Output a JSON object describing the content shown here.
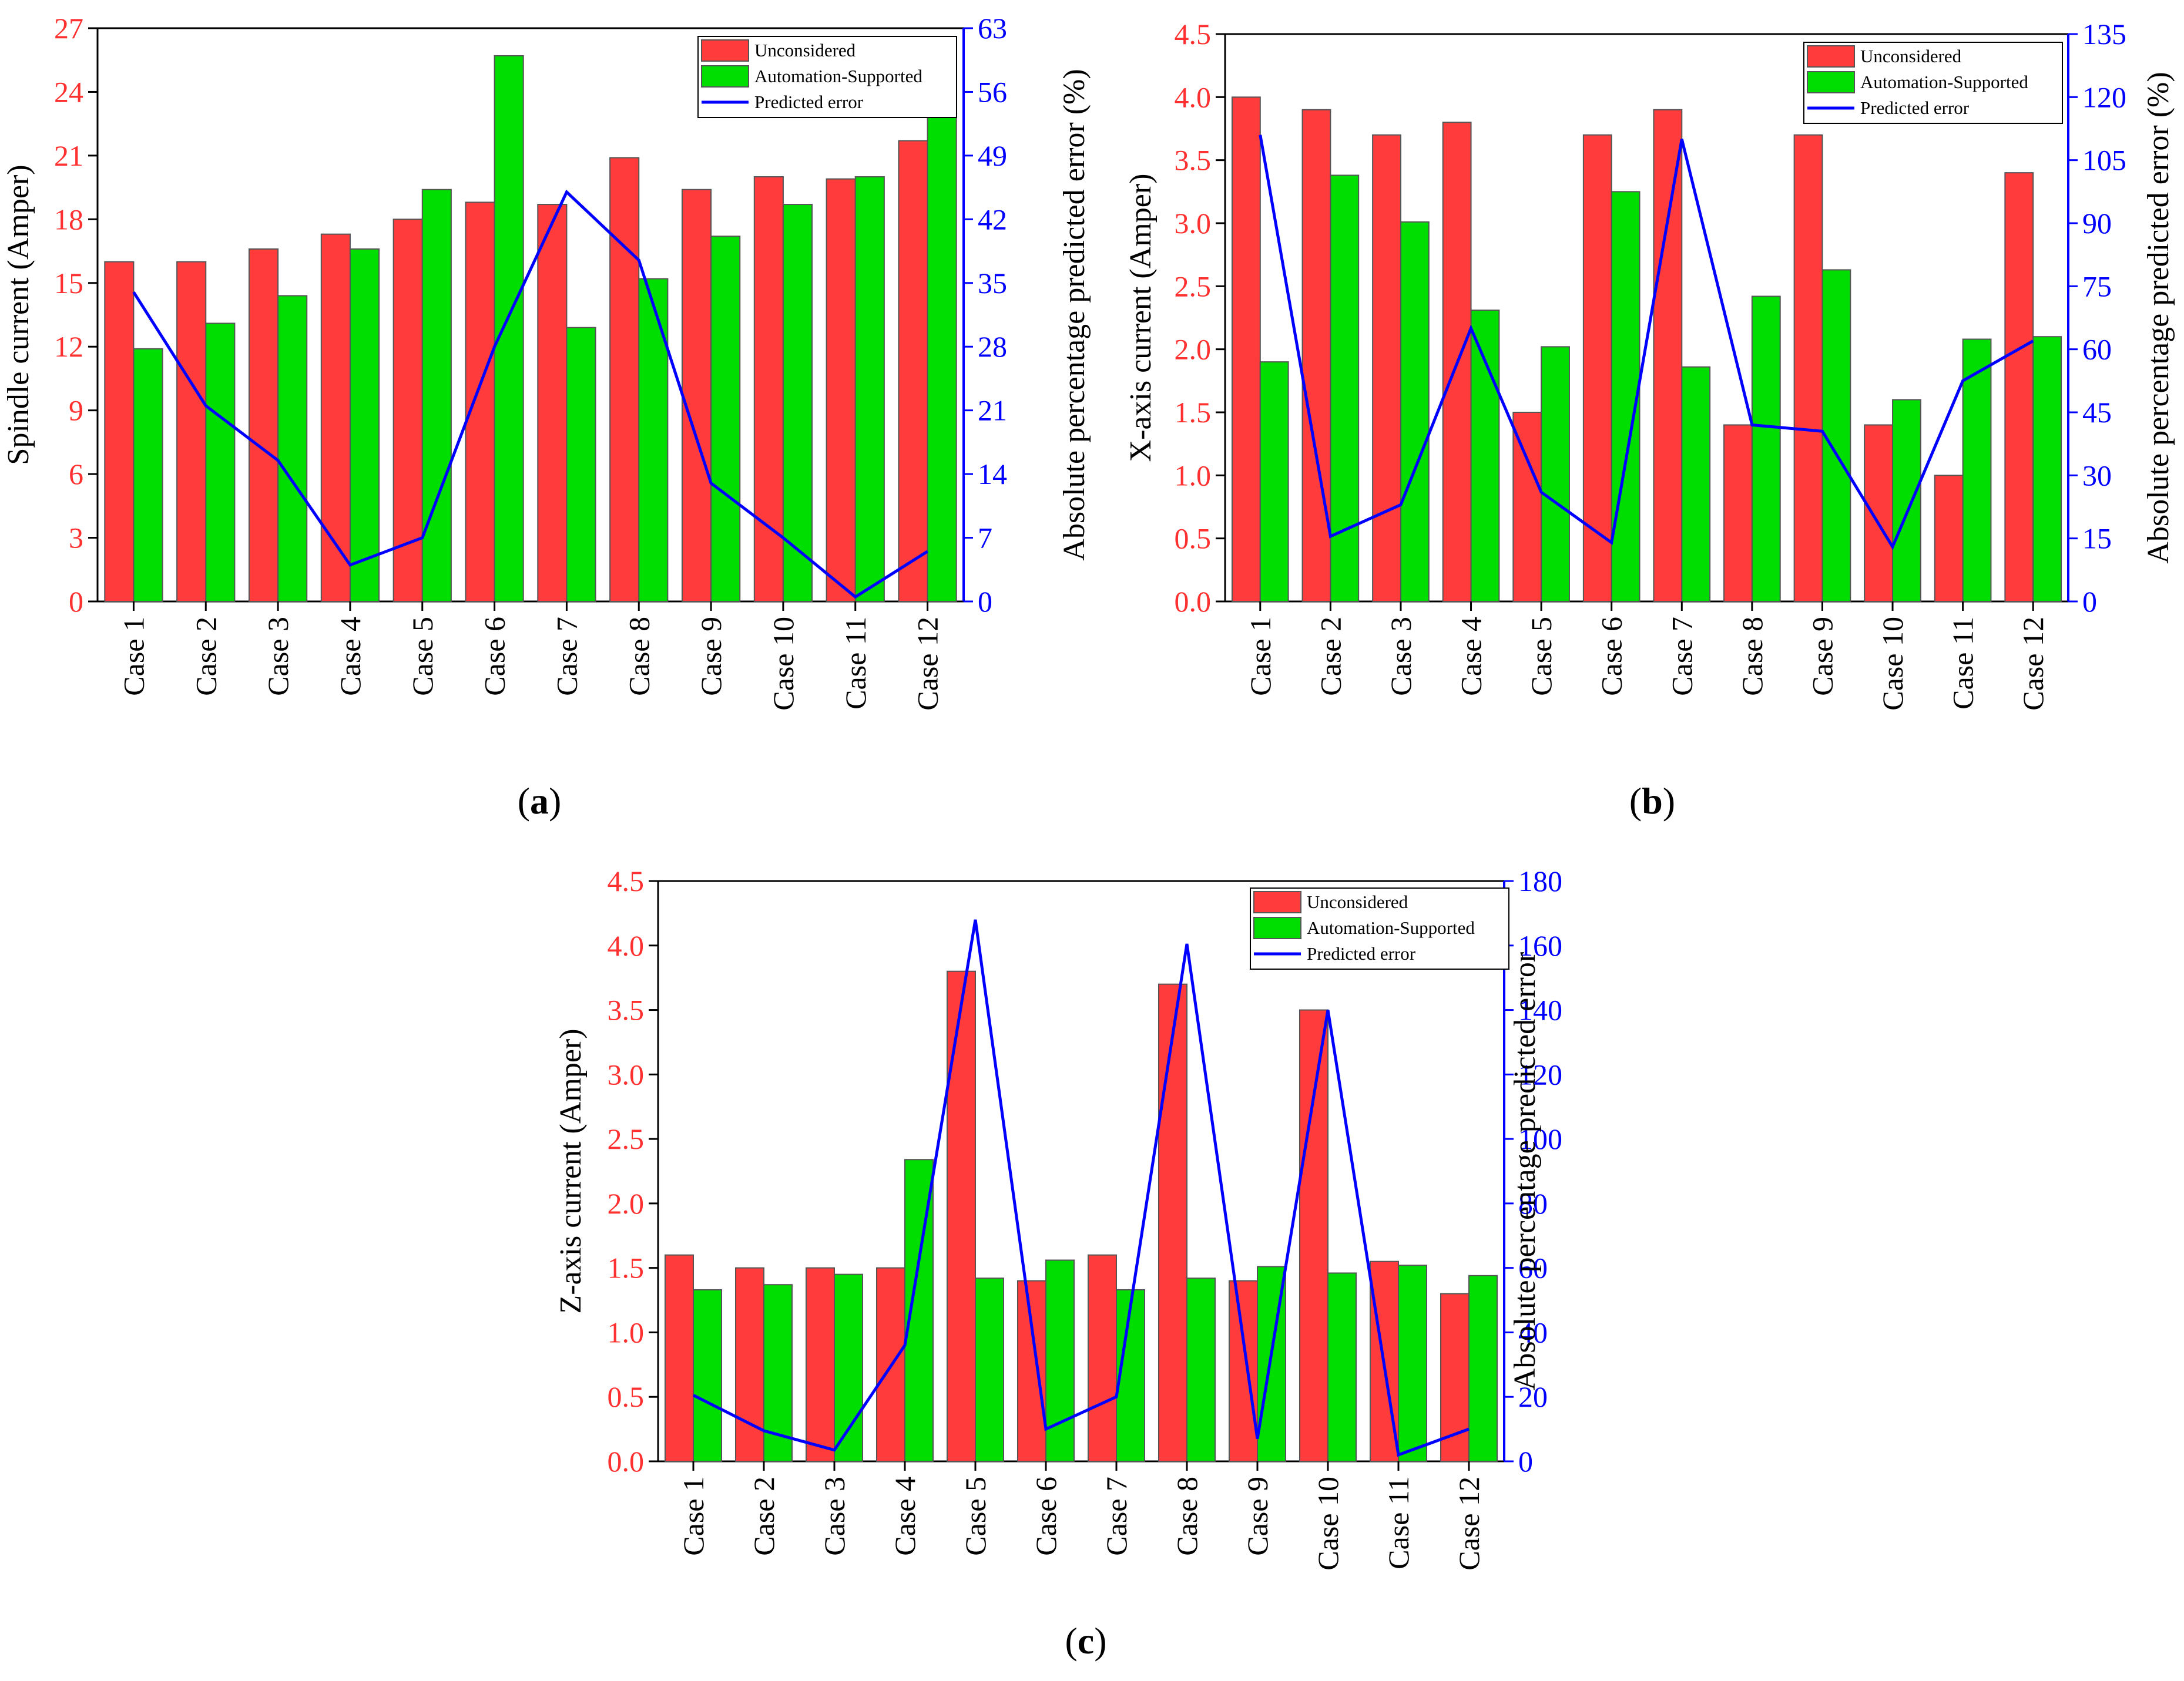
{
  "colors": {
    "unconsidered": "#FF3B3B",
    "automation": "#00DD00",
    "error_line": "#0000FF",
    "left_axis": "#FF3030",
    "right_axis": "#0000FF",
    "bar_edge": "#555555"
  },
  "chart_data": [
    {
      "type": "bar",
      "panel": "a",
      "panel_label": "(a)",
      "panel_letter": "a",
      "categories": [
        "Case 1",
        "Case 2",
        "Case 3",
        "Case 4",
        "Case 5",
        "Case 6",
        "Case 7",
        "Case 8",
        "Case 9",
        "Case 10",
        "Case 11",
        "Case 12"
      ],
      "series": [
        {
          "name": "Unconsidered",
          "kind": "bar",
          "values": [
            16.0,
            16.0,
            16.6,
            17.3,
            18.0,
            18.8,
            18.7,
            20.9,
            19.4,
            20.0,
            19.9,
            21.7
          ]
        },
        {
          "name": "Automation-Supported",
          "kind": "bar",
          "values": [
            11.9,
            13.1,
            14.4,
            16.6,
            19.4,
            25.7,
            12.9,
            15.2,
            17.2,
            18.7,
            20.0,
            23.0
          ]
        },
        {
          "name": "Predicted error",
          "kind": "line",
          "axis": "right",
          "values": [
            34.0,
            21.5,
            15.5,
            4.0,
            7.0,
            28.0,
            45.0,
            37.5,
            13.0,
            7.0,
            0.5,
            5.5
          ]
        }
      ],
      "ylabel": "Spindle current (Amper)",
      "ylim": [
        0,
        27
      ],
      "yticks": [
        "0",
        "3",
        "6",
        "9",
        "12",
        "15",
        "18",
        "21",
        "24",
        "27"
      ],
      "y2label": "Absolute percentage predicted error (%)",
      "y2lim": [
        0,
        63
      ],
      "y2ticks": [
        "0",
        "7",
        "14",
        "21",
        "28",
        "35",
        "42",
        "49",
        "56",
        "63"
      ],
      "legend": [
        "Unconsidered",
        "Automation-Supported",
        "Predicted error"
      ],
      "legend_position": "top-right"
    },
    {
      "type": "bar",
      "panel": "b",
      "panel_label": "(b)",
      "panel_letter": "b",
      "categories": [
        "Case 1",
        "Case 2",
        "Case 3",
        "Case 4",
        "Case 5",
        "Case 6",
        "Case 7",
        "Case 8",
        "Case 9",
        "Case 10",
        "Case 11",
        "Case 12"
      ],
      "series": [
        {
          "name": "Unconsidered",
          "kind": "bar",
          "values": [
            4.0,
            3.9,
            3.7,
            3.8,
            1.5,
            3.7,
            3.9,
            1.4,
            3.7,
            1.4,
            1.0,
            3.4
          ]
        },
        {
          "name": "Automation-Supported",
          "kind": "bar",
          "values": [
            1.9,
            3.38,
            3.01,
            2.31,
            2.02,
            3.25,
            1.86,
            2.42,
            2.63,
            1.6,
            2.08,
            2.1
          ]
        },
        {
          "name": "Predicted error",
          "kind": "line",
          "axis": "right",
          "values": [
            111,
            15.5,
            23,
            65,
            26,
            14,
            110,
            42,
            40.5,
            13,
            52.5,
            62
          ]
        }
      ],
      "ylabel": "X-axis current (Amper)",
      "ylim": [
        0,
        4.5
      ],
      "yticks": [
        "0.0",
        "0.5",
        "1.0",
        "1.5",
        "2.0",
        "2.5",
        "3.0",
        "3.5",
        "4.0",
        "4.5"
      ],
      "y2label": "Absolute percentage predicted error (%)",
      "y2lim": [
        0,
        135
      ],
      "y2ticks": [
        "0",
        "15",
        "30",
        "45",
        "60",
        "75",
        "90",
        "105",
        "120",
        "135"
      ],
      "legend": [
        "Unconsidered",
        "Automation-Supported",
        "Predicted error"
      ],
      "legend_position": "top-right"
    },
    {
      "type": "bar",
      "panel": "c",
      "panel_label": "(c)",
      "panel_letter": "c",
      "categories": [
        "Case 1",
        "Case 2",
        "Case 3",
        "Case 4",
        "Case 5",
        "Case 6",
        "Case 7",
        "Case 8",
        "Case 9",
        "Case 10",
        "Case 11",
        "Case 12"
      ],
      "series": [
        {
          "name": "Unconsidered",
          "kind": "bar",
          "values": [
            1.6,
            1.5,
            1.5,
            1.5,
            3.8,
            1.4,
            1.6,
            3.7,
            1.4,
            3.5,
            1.55,
            1.3
          ]
        },
        {
          "name": "Automation-Supported",
          "kind": "bar",
          "values": [
            1.33,
            1.37,
            1.45,
            2.34,
            1.42,
            1.56,
            1.33,
            1.42,
            1.51,
            1.46,
            1.52,
            1.44
          ]
        },
        {
          "name": "Predicted error",
          "kind": "line",
          "axis": "right",
          "values": [
            20.5,
            9.5,
            3.5,
            36,
            168,
            10,
            20,
            160.5,
            7,
            140,
            2,
            10
          ]
        }
      ],
      "ylabel": "Z-axis current (Amper)",
      "ylim": [
        0,
        4.5
      ],
      "yticks": [
        "0.0",
        "0.5",
        "1.0",
        "1.5",
        "2.0",
        "2.5",
        "3.0",
        "3.5",
        "4.0",
        "4.5"
      ],
      "y2label": "Absolute percentage predicted error",
      "y2lim": [
        0,
        180
      ],
      "y2ticks": [
        "0",
        "20",
        "40",
        "60",
        "80",
        "100",
        "120",
        "140",
        "160",
        "180"
      ],
      "legend": [
        "Unconsidered",
        "Automation-Supported",
        "Predicted error"
      ],
      "legend_position": "top-right"
    }
  ]
}
